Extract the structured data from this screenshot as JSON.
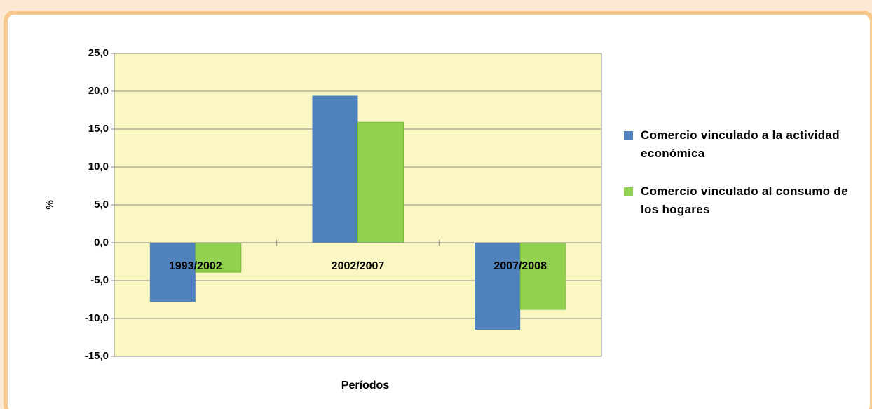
{
  "chart_data": {
    "type": "bar",
    "y_label": "%",
    "x_label": "Períodos",
    "categories": [
      "1993/2002",
      "2002/2007",
      "2007/2008"
    ],
    "series": [
      {
        "name": "Comercio vinculado a la actividad económica",
        "color": "#4f81bd",
        "values": [
          -7.8,
          19.4,
          -11.5
        ]
      },
      {
        "name": "Comercio vinculado al consumo de los hogares",
        "color": "#92d050",
        "values": [
          -3.9,
          15.9,
          -8.8
        ]
      }
    ],
    "ylim": [
      -15,
      25
    ],
    "yticks": [
      {
        "value": -15,
        "label": "-15,0"
      },
      {
        "value": -10,
        "label": "-10,0"
      },
      {
        "value": -5,
        "label": "-5,0"
      },
      {
        "value": 0,
        "label": "0,0"
      },
      {
        "value": 5,
        "label": "5,0"
      },
      {
        "value": 10,
        "label": "10,0"
      },
      {
        "value": 15,
        "label": "15,0"
      },
      {
        "value": 20,
        "label": "20,0"
      },
      {
        "value": 25,
        "label": "25,0"
      }
    ],
    "grid": true
  }
}
